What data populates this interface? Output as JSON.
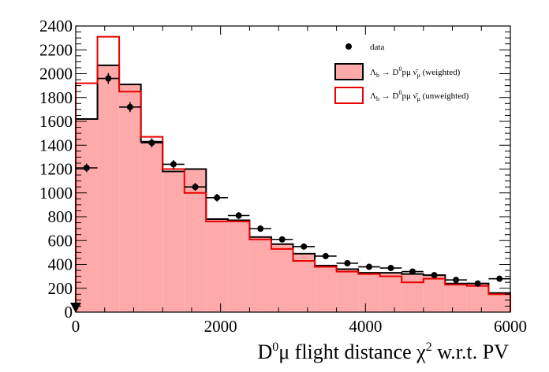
{
  "chart_data": {
    "type": "histogram",
    "bin_edges": [
      0,
      300,
      600,
      900,
      1200,
      1500,
      1800,
      2100,
      2400,
      2700,
      3000,
      3300,
      3600,
      3900,
      4200,
      4500,
      4800,
      5100,
      5400,
      5700,
      6000
    ],
    "xlim": [
      0,
      6000
    ],
    "ylim": [
      0,
      2400
    ],
    "xticks": [
      0,
      2000,
      4000,
      6000
    ],
    "yticks": [
      0,
      200,
      400,
      600,
      800,
      1000,
      1200,
      1400,
      1600,
      1800,
      2000,
      2200,
      2400
    ],
    "xlabel": "D⁰μ flight distance χ² w.r.t. PV",
    "ylabel": "",
    "legend_position": "top-right",
    "series": [
      {
        "name": "data",
        "kind": "points",
        "color": "#000000",
        "x": [
          150,
          450,
          750,
          1050,
          1350,
          1650,
          1950,
          2250,
          2550,
          2850,
          3150,
          3450,
          3750,
          4050,
          4350,
          4650,
          4950,
          5250,
          5550,
          5850
        ],
        "values": [
          1210,
          1960,
          1720,
          1420,
          1240,
          1050,
          960,
          810,
          700,
          610,
          550,
          470,
          410,
          380,
          370,
          340,
          310,
          270,
          240,
          280
        ],
        "errors": [
          35,
          45,
          42,
          38,
          35,
          32,
          31,
          29,
          27,
          25,
          24,
          22,
          21,
          20,
          20,
          19,
          18,
          17,
          16,
          17
        ]
      },
      {
        "name": "Λb → D⁰pμ ν̄μ (weighted)",
        "kind": "filled-histogram",
        "fill": "#ffaaaa",
        "stroke": "#000000",
        "values": [
          1620,
          2070,
          1910,
          1430,
          1180,
          1200,
          780,
          770,
          630,
          570,
          490,
          390,
          360,
          330,
          330,
          320,
          310,
          240,
          240,
          160
        ]
      },
      {
        "name": "Λb → D⁰pμ ν̄μ (unweighted)",
        "kind": "outline-histogram",
        "stroke": "#e80000",
        "values": [
          1920,
          2310,
          1850,
          1470,
          1200,
          1000,
          760,
          760,
          610,
          530,
          430,
          380,
          340,
          320,
          300,
          250,
          280,
          230,
          220,
          150
        ]
      }
    ],
    "legend": [
      {
        "symbol": "marker",
        "label_prefix": "Λ",
        "label_sub": "b",
        "label_arrow": " → D",
        "label_sup": "0",
        "label_rest": "pμ ν̄",
        "label_sub2": "μ",
        "label_suffix": "",
        "plain": "data"
      },
      {
        "symbol": "filled-box",
        "label_prefix": "Λ",
        "label_sub": "b",
        "label_arrow": " → D",
        "label_sup": "0",
        "label_rest": "pμ ν̄",
        "label_sub2": "μ",
        "label_suffix": " (weighted)"
      },
      {
        "symbol": "outline-box",
        "label_prefix": "Λ",
        "label_sub": "b",
        "label_arrow": " → D",
        "label_sup": "0",
        "label_rest": "pμ ν̄",
        "label_sub2": "μ",
        "label_suffix": " (unweighted)"
      }
    ],
    "axis_title_parts": {
      "d": "D",
      "d_sup": "0",
      "mid": "μ flight distance χ",
      "chi_sup": "2",
      "end": " w.r.t. PV"
    }
  }
}
